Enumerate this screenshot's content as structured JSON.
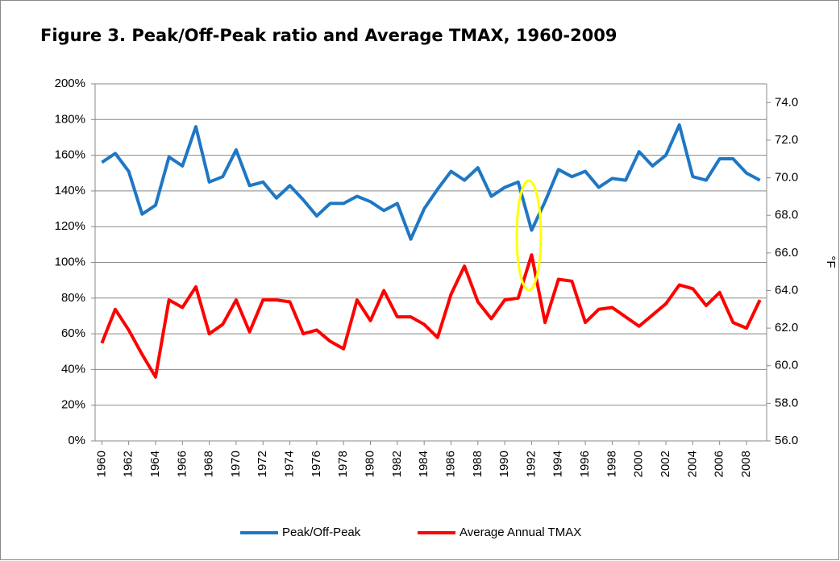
{
  "chart_data": {
    "type": "line",
    "title": "Figure 3. Peak/Off-Peak ratio and Average TMAX, 1960-2009",
    "y2label": "°F",
    "x": [
      1960,
      1961,
      1962,
      1963,
      1964,
      1965,
      1966,
      1967,
      1968,
      1969,
      1970,
      1971,
      1972,
      1973,
      1974,
      1975,
      1976,
      1977,
      1978,
      1979,
      1980,
      1981,
      1982,
      1983,
      1984,
      1985,
      1986,
      1987,
      1988,
      1989,
      1990,
      1991,
      1992,
      1993,
      1994,
      1995,
      1996,
      1997,
      1998,
      1999,
      2000,
      2001,
      2002,
      2003,
      2004,
      2005,
      2006,
      2007,
      2008,
      2009
    ],
    "xlim": [
      1959.5,
      2009.5
    ],
    "xticks": [
      1960,
      1962,
      1964,
      1966,
      1968,
      1970,
      1972,
      1974,
      1976,
      1978,
      1980,
      1982,
      1984,
      1986,
      1988,
      1990,
      1992,
      1994,
      1996,
      1998,
      2000,
      2002,
      2004,
      2006,
      2008
    ],
    "ylim": [
      0,
      200
    ],
    "yticks": [
      {
        "value": 0,
        "label": "0%"
      },
      {
        "value": 20,
        "label": "20%"
      },
      {
        "value": 40,
        "label": "40%"
      },
      {
        "value": 60,
        "label": "60%"
      },
      {
        "value": 80,
        "label": "80%"
      },
      {
        "value": 100,
        "label": "100%"
      },
      {
        "value": 120,
        "label": "120%"
      },
      {
        "value": 140,
        "label": "140%"
      },
      {
        "value": 160,
        "label": "160%"
      },
      {
        "value": 180,
        "label": "180%"
      },
      {
        "value": 200,
        "label": "200%"
      }
    ],
    "y2lim": [
      56,
      75
    ],
    "y2ticks": [
      {
        "value": 56,
        "label": "56.0"
      },
      {
        "value": 58,
        "label": "58.0"
      },
      {
        "value": 60,
        "label": "60.0"
      },
      {
        "value": 62,
        "label": "62.0"
      },
      {
        "value": 64,
        "label": "64.0"
      },
      {
        "value": 66,
        "label": "66.0"
      },
      {
        "value": 68,
        "label": "68.0"
      },
      {
        "value": 70,
        "label": "70.0"
      },
      {
        "value": 72,
        "label": "72.0"
      },
      {
        "value": 74,
        "label": "74.0"
      }
    ],
    "grid": true,
    "legend": "bottom",
    "series": [
      {
        "name": "Peak/Off-Peak",
        "color": "#1f77c4",
        "values": [
          156,
          161,
          151,
          127,
          132,
          159,
          154,
          176,
          145,
          148,
          163,
          143,
          145,
          136,
          143,
          135,
          126,
          133,
          133,
          137,
          134,
          129,
          133,
          113,
          130,
          141,
          151,
          146,
          153,
          137,
          142,
          145,
          118,
          134,
          152,
          148,
          151,
          142,
          147,
          146,
          162,
          154,
          160,
          177,
          148,
          146,
          158,
          158,
          150,
          146
        ]
      },
      {
        "name": "Average Annual TMAX",
        "color": "#ff0000",
        "axis": "y2",
        "values": [
          61.2,
          63.0,
          61.9,
          60.6,
          59.4,
          63.5,
          63.1,
          64.2,
          61.7,
          62.2,
          63.5,
          61.8,
          63.5,
          63.5,
          63.4,
          61.7,
          61.9,
          61.3,
          60.9,
          63.5,
          62.4,
          64.0,
          62.6,
          62.6,
          62.2,
          61.5,
          63.8,
          65.3,
          63.4,
          62.5,
          63.5,
          63.6,
          65.9,
          62.3,
          64.6,
          64.5,
          62.3,
          63.0,
          63.1,
          62.6,
          62.1,
          62.7,
          63.3,
          64.3,
          64.1,
          63.2,
          63.9,
          62.3,
          62.0,
          63.5
        ]
      }
    ]
  }
}
